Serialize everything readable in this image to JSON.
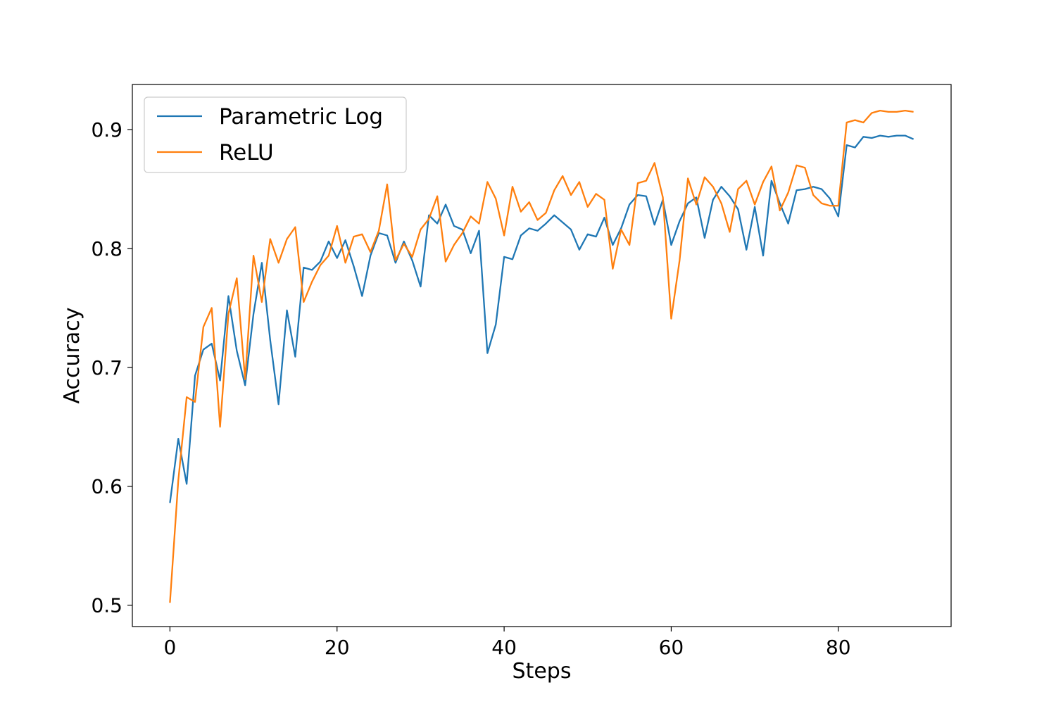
{
  "chart_data": {
    "type": "line",
    "title": "",
    "xlabel": "Steps",
    "ylabel": "Accuracy",
    "xlim": [
      -4.5,
      93.5
    ],
    "ylim": [
      0.482,
      0.938
    ],
    "xticks": [
      0,
      20,
      40,
      60,
      80
    ],
    "yticks": [
      0.5,
      0.6,
      0.7,
      0.8,
      0.9
    ],
    "xtick_labels": [
      "0",
      "20",
      "40",
      "60",
      "80"
    ],
    "ytick_labels": [
      "0.5",
      "0.6",
      "0.7",
      "0.8",
      "0.9"
    ],
    "grid": false,
    "legend_position": "top-left",
    "x": [
      0,
      1,
      2,
      3,
      4,
      5,
      6,
      7,
      8,
      9,
      10,
      11,
      12,
      13,
      14,
      15,
      16,
      17,
      18,
      19,
      20,
      21,
      22,
      23,
      24,
      25,
      26,
      27,
      28,
      29,
      30,
      31,
      32,
      33,
      34,
      35,
      36,
      37,
      38,
      39,
      40,
      41,
      42,
      43,
      44,
      45,
      46,
      47,
      48,
      49,
      50,
      51,
      52,
      53,
      54,
      55,
      56,
      57,
      58,
      59,
      60,
      61,
      62,
      63,
      64,
      65,
      66,
      67,
      68,
      69,
      70,
      71,
      72,
      73,
      74,
      75,
      76,
      77,
      78,
      79,
      80,
      81,
      82,
      83,
      84,
      85,
      86,
      87,
      88,
      89
    ],
    "series": [
      {
        "name": "Parametric Log",
        "color": "#1f77b4",
        "values": [
          0.586,
          0.64,
          0.602,
          0.693,
          0.715,
          0.72,
          0.689,
          0.76,
          0.714,
          0.685,
          0.745,
          0.788,
          0.723,
          0.669,
          0.748,
          0.709,
          0.784,
          0.782,
          0.789,
          0.806,
          0.792,
          0.807,
          0.785,
          0.76,
          0.794,
          0.813,
          0.811,
          0.788,
          0.806,
          0.79,
          0.768,
          0.828,
          0.821,
          0.837,
          0.819,
          0.816,
          0.796,
          0.815,
          0.712,
          0.736,
          0.793,
          0.791,
          0.811,
          0.817,
          0.815,
          0.821,
          0.828,
          0.822,
          0.816,
          0.799,
          0.812,
          0.81,
          0.826,
          0.803,
          0.817,
          0.837,
          0.845,
          0.844,
          0.82,
          0.841,
          0.803,
          0.823,
          0.838,
          0.843,
          0.809,
          0.841,
          0.852,
          0.844,
          0.833,
          0.799,
          0.835,
          0.794,
          0.857,
          0.838,
          0.821,
          0.849,
          0.85,
          0.852,
          0.85,
          0.842,
          0.827,
          0.887,
          0.885,
          0.894,
          0.893,
          0.895,
          0.894,
          0.895,
          0.895,
          0.892
        ]
      },
      {
        "name": "ReLU",
        "color": "#ff7f0e",
        "values": [
          0.502,
          0.605,
          0.675,
          0.671,
          0.734,
          0.75,
          0.65,
          0.745,
          0.775,
          0.69,
          0.794,
          0.755,
          0.808,
          0.788,
          0.808,
          0.818,
          0.755,
          0.772,
          0.786,
          0.794,
          0.819,
          0.788,
          0.81,
          0.812,
          0.797,
          0.815,
          0.854,
          0.79,
          0.804,
          0.793,
          0.816,
          0.825,
          0.844,
          0.789,
          0.803,
          0.813,
          0.827,
          0.821,
          0.856,
          0.842,
          0.811,
          0.852,
          0.831,
          0.839,
          0.824,
          0.83,
          0.849,
          0.861,
          0.845,
          0.856,
          0.835,
          0.846,
          0.841,
          0.783,
          0.816,
          0.803,
          0.855,
          0.857,
          0.872,
          0.843,
          0.741,
          0.79,
          0.859,
          0.837,
          0.86,
          0.852,
          0.838,
          0.814,
          0.85,
          0.857,
          0.837,
          0.856,
          0.869,
          0.832,
          0.847,
          0.87,
          0.868,
          0.845,
          0.838,
          0.836,
          0.836,
          0.906,
          0.908,
          0.906,
          0.914,
          0.916,
          0.915,
          0.915,
          0.916,
          0.915
        ]
      }
    ]
  }
}
